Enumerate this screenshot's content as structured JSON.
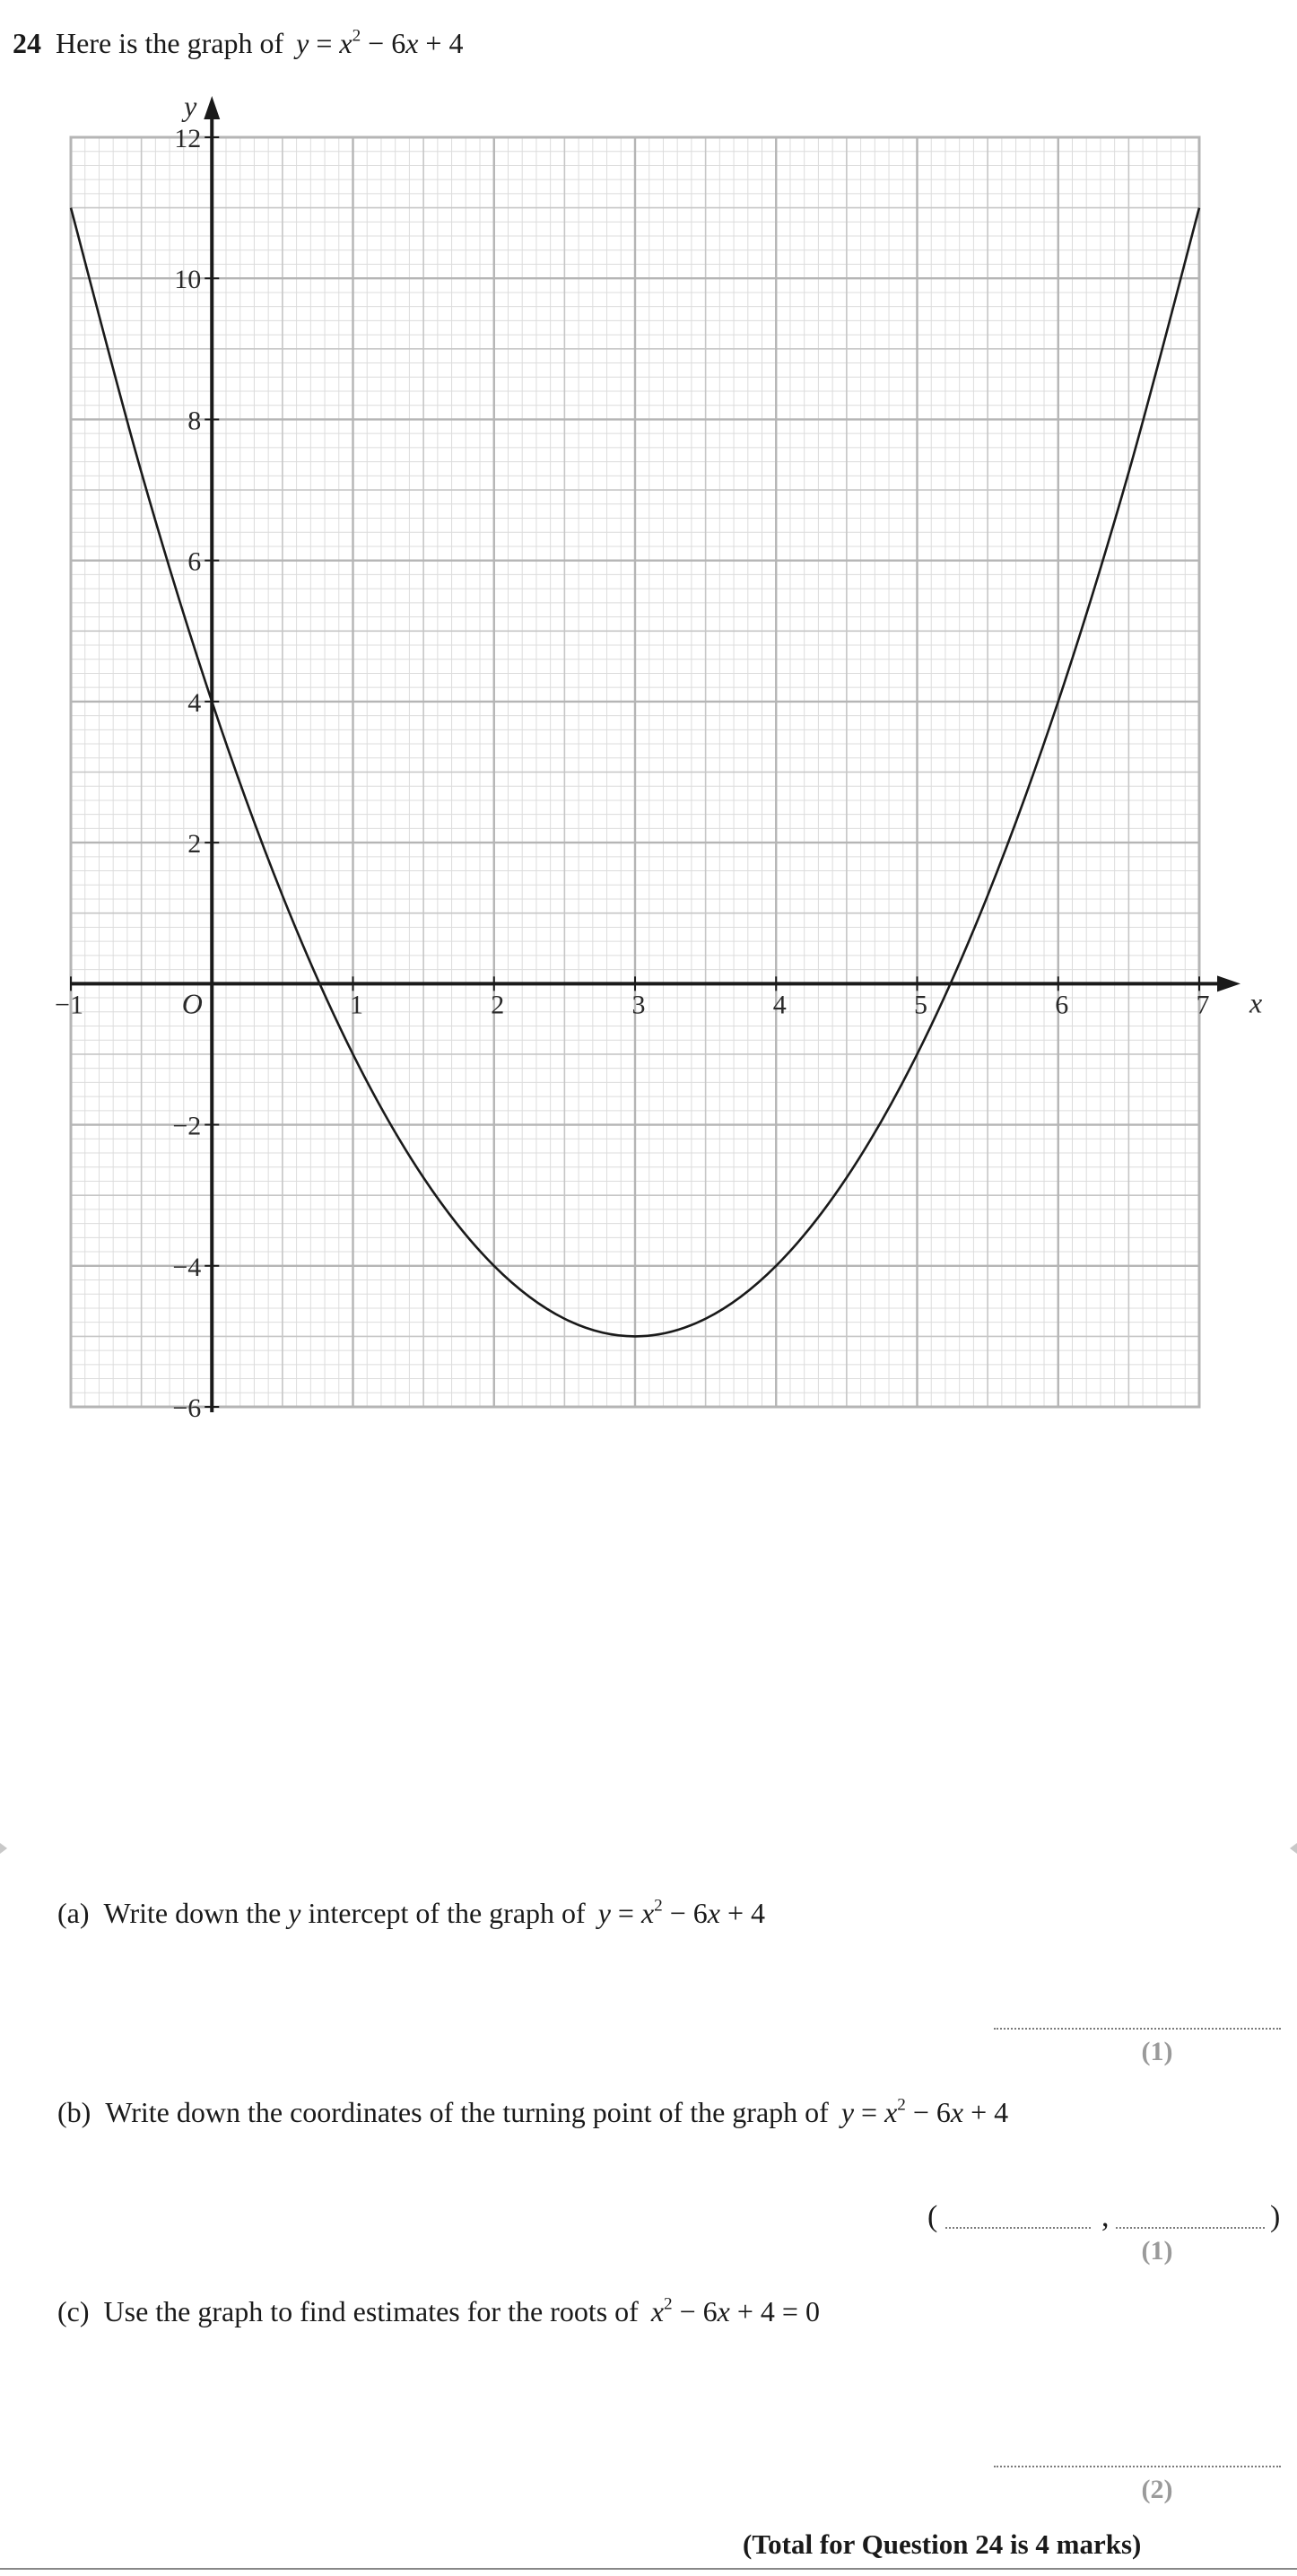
{
  "question": {
    "number": "24",
    "intro": "Here is the graph of",
    "equation_y": "y",
    "equation_eq": " = ",
    "equation_x": "x",
    "equation_exp": "2",
    "equation_rest_1": " − 6",
    "equation_x2": "x",
    "equation_rest_2": " + 4"
  },
  "chart_data": {
    "type": "line",
    "function": "y = x^2 - 6x + 4",
    "x_range": [
      -1,
      7
    ],
    "y_range": [
      -6,
      12
    ],
    "xlabel": "x",
    "ylabel": "y",
    "origin_label": "O",
    "x_ticks": [
      "−1",
      "1",
      "2",
      "3",
      "4",
      "5",
      "6",
      "7"
    ],
    "x_tick_values": [
      -1,
      1,
      2,
      3,
      4,
      5,
      6,
      7
    ],
    "y_ticks": [
      "12",
      "10",
      "8",
      "6",
      "4",
      "2",
      "−2",
      "−4",
      "−6"
    ],
    "y_tick_values": [
      12,
      10,
      8,
      6,
      4,
      2,
      -2,
      -4,
      -6
    ],
    "grid": true,
    "grid_minor_x": 0.1,
    "grid_minor_y": 0.2,
    "series": [
      {
        "x": [
          -1,
          -0.5,
          0,
          0.5,
          1,
          1.5,
          2,
          2.5,
          3,
          3.5,
          4,
          4.5,
          5,
          5.5,
          6,
          6.5,
          7
        ],
        "y": [
          11,
          7.25,
          4,
          1.25,
          -1,
          -2.75,
          -4,
          -4.75,
          -5,
          -4.75,
          -4,
          -2.75,
          -1,
          1.25,
          4,
          7.25,
          11
        ]
      }
    ]
  },
  "parts": {
    "a": {
      "label": "(a)",
      "text": "Write down the",
      "y_word": "y",
      "text_2": "intercept of the graph of",
      "eq_y": "y",
      "eq_mid": " = ",
      "eq_x": "x",
      "eq_exp": "2",
      "eq_rest_1": " − 6",
      "eq_x2": "x",
      "eq_rest_2": " + 4",
      "marks": "(1)"
    },
    "b": {
      "label": "(b)",
      "text": "Write down the coordinates of the turning point of the graph of",
      "eq_y": "y",
      "eq_mid": " = ",
      "eq_x": "x",
      "eq_exp": "2",
      "eq_rest_1": " − 6",
      "eq_x2": "x",
      "eq_rest_2": " + 4",
      "open_paren": "(",
      "comma": ",",
      "close_paren": ")",
      "marks": "(1)"
    },
    "c": {
      "label": "(c)",
      "text": "Use the graph to find estimates for the roots of",
      "eq_x": "x",
      "eq_exp": "2",
      "eq_rest_1": " − 6",
      "eq_x2": "x",
      "eq_rest_2": " + 4 = 0",
      "marks": "(2)"
    }
  },
  "total": "(Total for Question 24 is 4 marks)"
}
